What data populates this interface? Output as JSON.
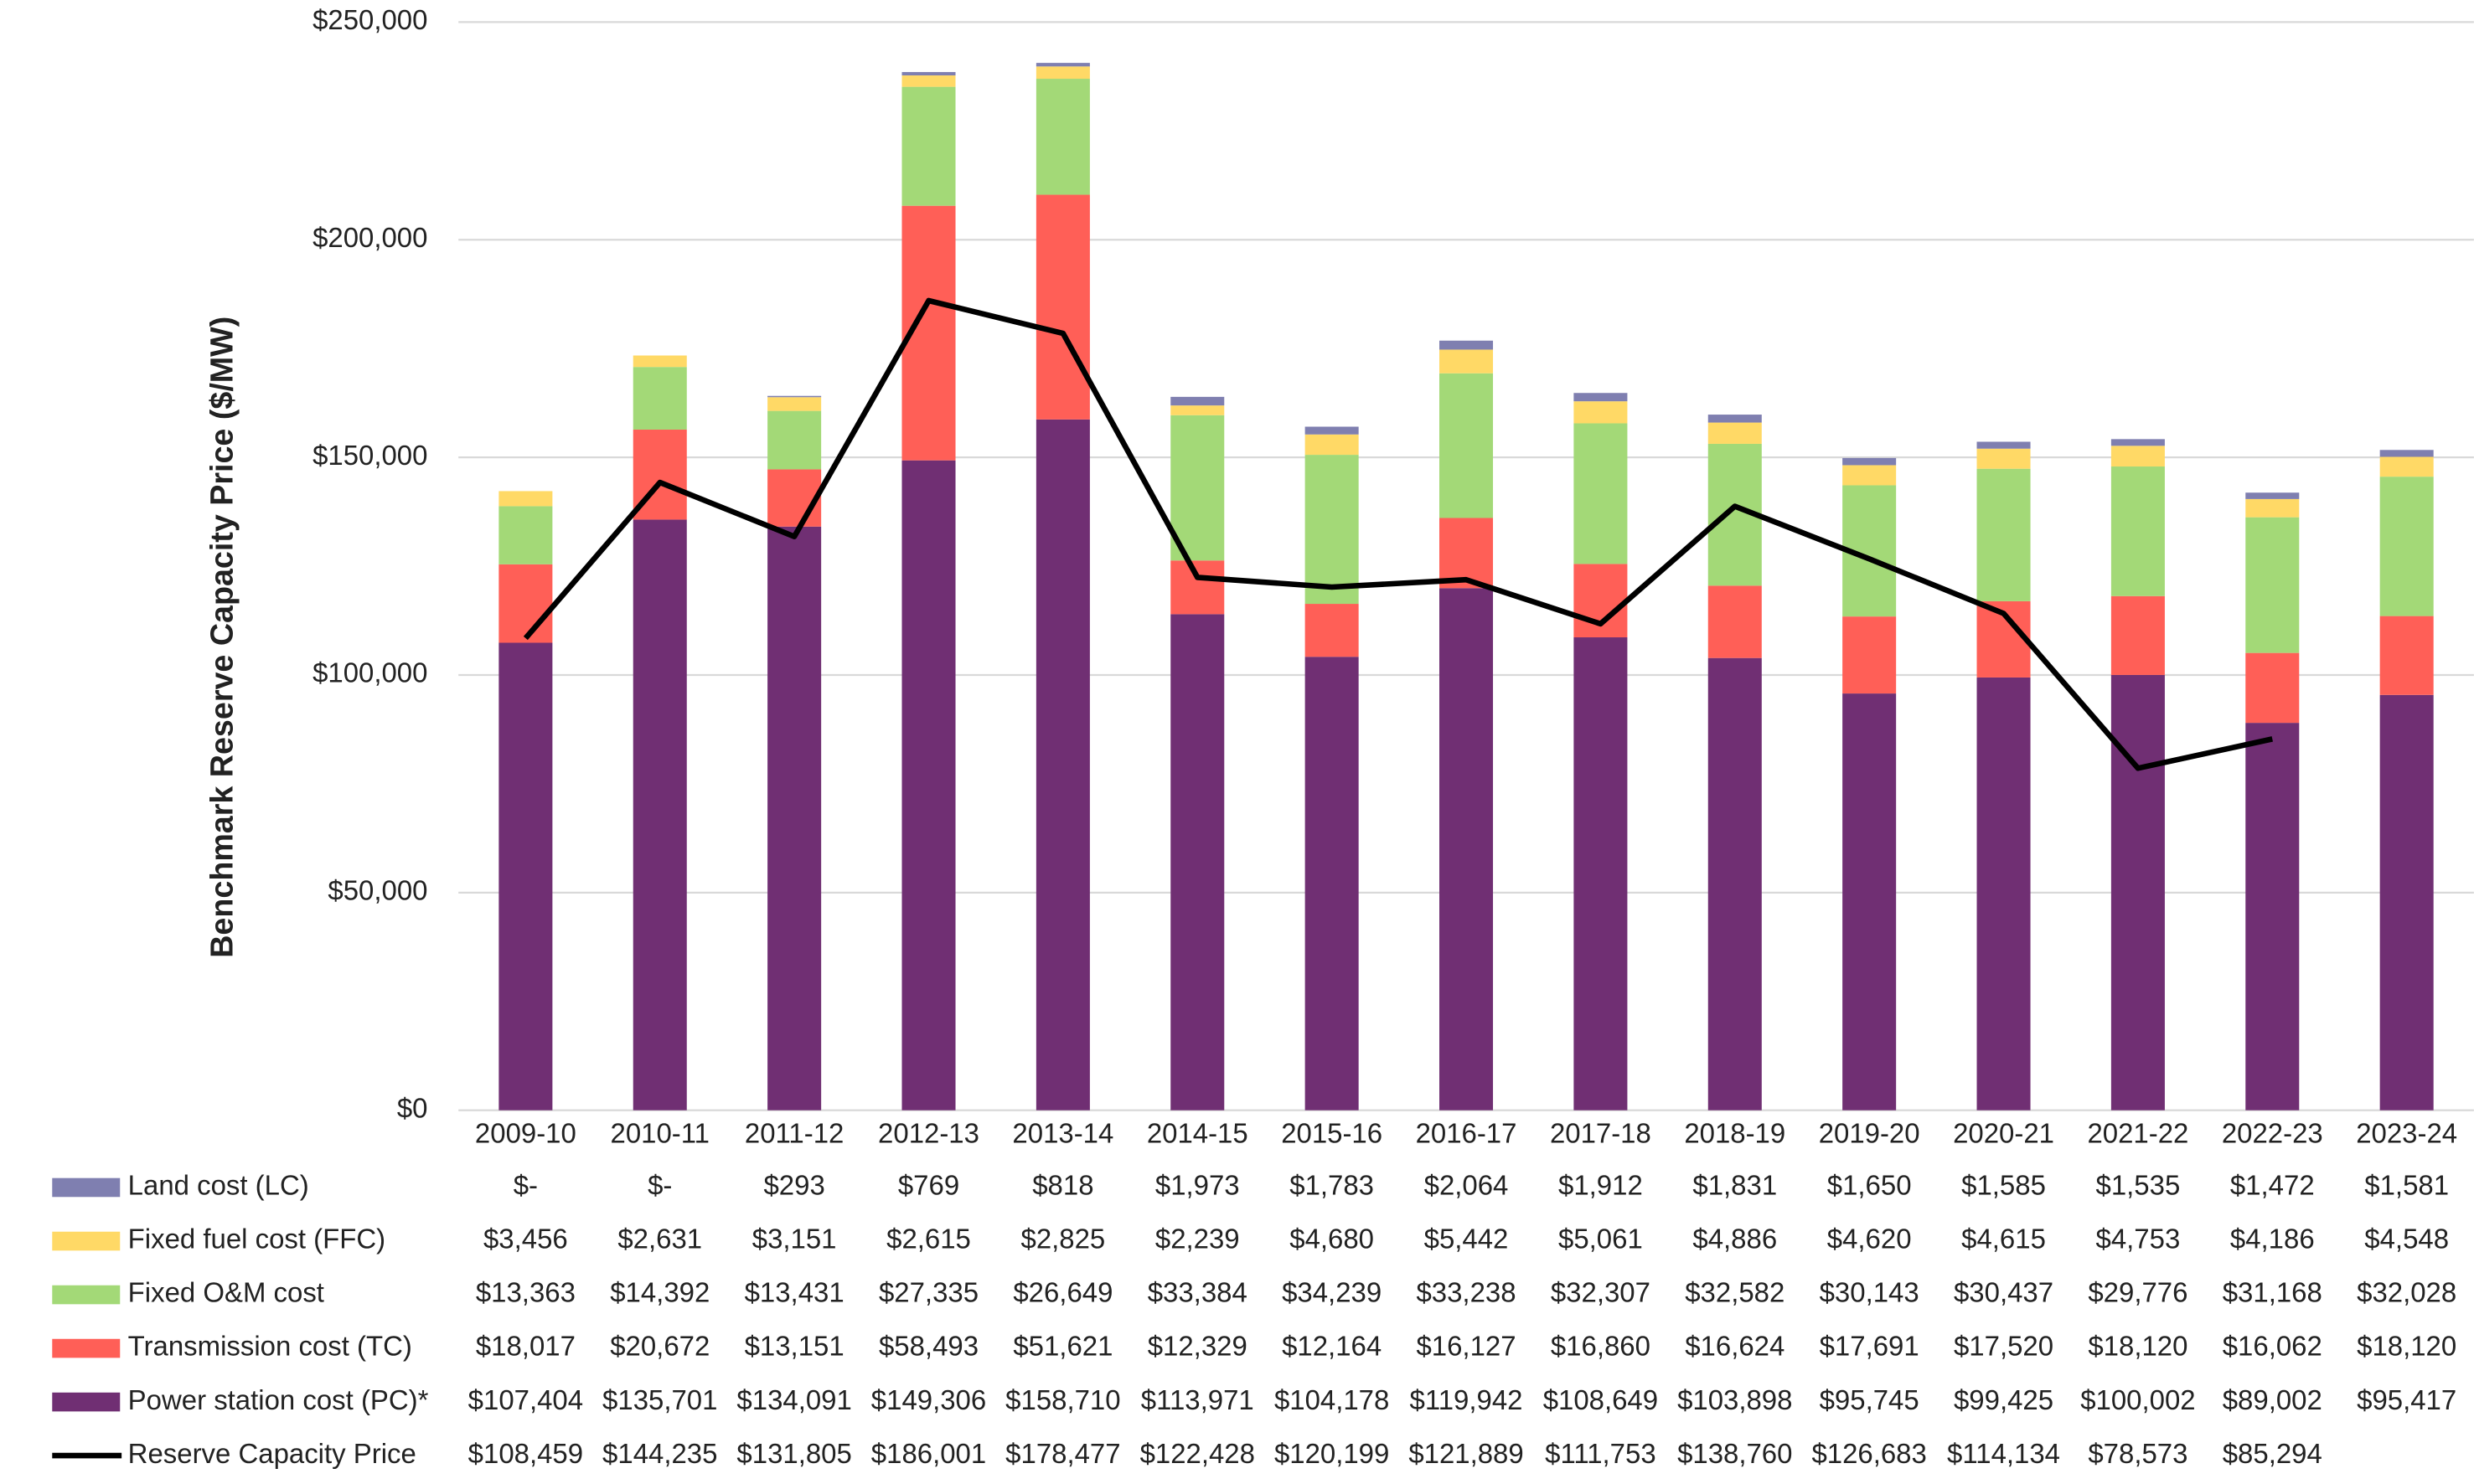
{
  "chart_data": {
    "type": "bar",
    "stacked": true,
    "y_label": "Benchmark Reserve Capacity Price ($/MW)",
    "categories": [
      "2009-10",
      "2010-11",
      "2011-12",
      "2012-13",
      "2013-14",
      "2014-15",
      "2015-16",
      "2016-17",
      "2017-18",
      "2018-19",
      "2019-20",
      "2020-21",
      "2021-22",
      "2022-23",
      "2023-24"
    ],
    "ylim": [
      0,
      250000
    ],
    "yticks": [
      {
        "value": 0,
        "label": "$0"
      },
      {
        "value": 50000,
        "label": "$50,000"
      },
      {
        "value": 100000,
        "label": "$100,000"
      },
      {
        "value": 150000,
        "label": "$150,000"
      },
      {
        "value": 200000,
        "label": "$200,000"
      },
      {
        "value": 250000,
        "label": "$250,000"
      }
    ],
    "grid": true,
    "series": [
      {
        "name": "Power station cost (PC)*",
        "color": "#702f73",
        "type": "bar",
        "values": [
          107404,
          135701,
          134091,
          149306,
          158710,
          113971,
          104178,
          119942,
          108649,
          103898,
          95745,
          99425,
          100002,
          89002,
          95417
        ],
        "value_labels": [
          "$107,404",
          "$135,701",
          "$134,091",
          "$149,306",
          "$158,710",
          "$113,971",
          "$104,178",
          "$119,942",
          "$108,649",
          "$103,898",
          "$95,745",
          "$99,425",
          "$100,002",
          "$89,002",
          "$95,417"
        ]
      },
      {
        "name": "Transmission cost (TC)",
        "color": "#ff5f57",
        "type": "bar",
        "values": [
          18017,
          20672,
          13151,
          58493,
          51621,
          12329,
          12164,
          16127,
          16860,
          16624,
          17691,
          17520,
          18120,
          16062,
          18120
        ],
        "value_labels": [
          "$18,017",
          "$20,672",
          "$13,151",
          "$58,493",
          "$51,621",
          "$12,329",
          "$12,164",
          "$16,127",
          "$16,860",
          "$16,624",
          "$17,691",
          "$17,520",
          "$18,120",
          "$16,062",
          "$18,120"
        ]
      },
      {
        "name": "Fixed O&M cost",
        "color": "#a3d977",
        "type": "bar",
        "values": [
          13363,
          14392,
          13431,
          27335,
          26649,
          33384,
          34239,
          33238,
          32307,
          32582,
          30143,
          30437,
          29776,
          31168,
          32028
        ],
        "value_labels": [
          "$13,363",
          "$14,392",
          "$13,431",
          "$27,335",
          "$26,649",
          "$33,384",
          "$34,239",
          "$33,238",
          "$32,307",
          "$32,582",
          "$30,143",
          "$30,437",
          "$29,776",
          "$31,168",
          "$32,028"
        ]
      },
      {
        "name": "Fixed fuel cost (FFC)",
        "color": "#ffd966",
        "type": "bar",
        "values": [
          3456,
          2631,
          3151,
          2615,
          2825,
          2239,
          4680,
          5442,
          5061,
          4886,
          4620,
          4615,
          4753,
          4186,
          4548
        ],
        "value_labels": [
          "$3,456",
          "$2,631",
          "$3,151",
          "$2,615",
          "$2,825",
          "$2,239",
          "$4,680",
          "$5,442",
          "$5,061",
          "$4,886",
          "$4,620",
          "$4,615",
          "$4,753",
          "$4,186",
          "$4,548"
        ]
      },
      {
        "name": "Land cost (LC)",
        "color": "#7f7fb0",
        "type": "bar",
        "values": [
          0,
          0,
          293,
          769,
          818,
          1973,
          1783,
          2064,
          1912,
          1831,
          1650,
          1585,
          1535,
          1472,
          1581
        ],
        "value_labels": [
          "$-",
          "$-",
          "$293",
          "$769",
          "$818",
          "$1,973",
          "$1,783",
          "$2,064",
          "$1,912",
          "$1,831",
          "$1,650",
          "$1,585",
          "$1,535",
          "$1,472",
          "$1,581"
        ]
      },
      {
        "name": "Reserve Capacity Price",
        "color": "#000000",
        "type": "line",
        "values": [
          108459,
          144235,
          131805,
          186001,
          178477,
          122428,
          120199,
          121889,
          111753,
          138760,
          126683,
          114134,
          78573,
          85294,
          null
        ],
        "value_labels": [
          "$108,459",
          "$144,235",
          "$131,805",
          "$186,001",
          "$178,477",
          "$122,428",
          "$120,199",
          "$121,889",
          "$111,753",
          "$138,760",
          "$126,683",
          "$114,134",
          "$78,573",
          "$85,294",
          null
        ]
      }
    ]
  }
}
